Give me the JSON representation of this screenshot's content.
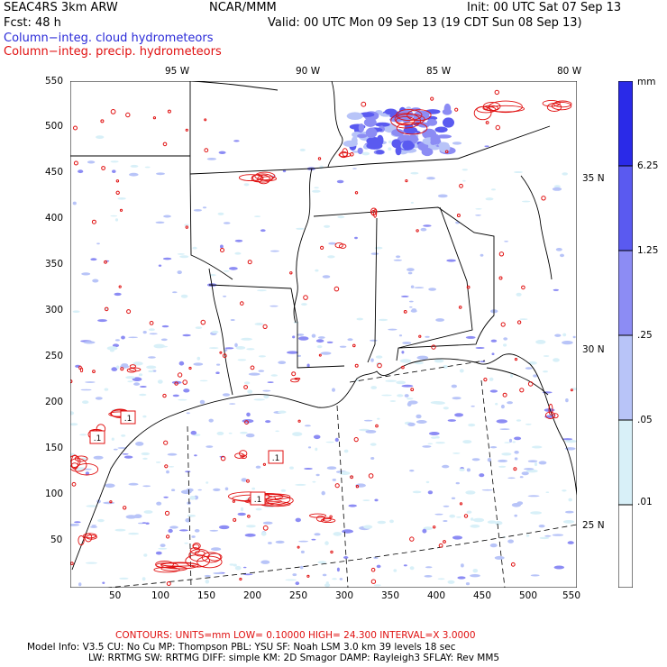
{
  "header": {
    "model": "SEAC4RS  3km ARW",
    "org": "NCAR/MMM",
    "init": "Init: 00 UTC Sat 07 Sep 13",
    "fcst": "Fcst:   48 h",
    "valid": "Valid: 00 UTC Mon 09 Sep 13 (19 CDT Sun 08 Sep 13)",
    "field1": "Column−integ. cloud hydrometeors",
    "field2": "Column−integ. precip. hydrometeors"
  },
  "map": {
    "lon_labels": [
      "95 W",
      "90 W",
      "85 W",
      "80 W"
    ],
    "lat_labels": [
      "35 N",
      "30 N",
      "25 N"
    ],
    "x_ticks": [
      "50",
      "100",
      "150",
      "200",
      "250",
      "300",
      "350",
      "400",
      "450",
      "500",
      "550"
    ],
    "y_ticks": [
      "550",
      "500",
      "450",
      "400",
      "350",
      "300",
      "250",
      "200",
      "150",
      "100",
      "50"
    ],
    "contour_labels": [
      ".1",
      ".1",
      ".1",
      ".1"
    ]
  },
  "colorbar": {
    "unit": "mm",
    "levels": [
      "6.25",
      "1.25",
      ".25",
      ".05",
      ".01"
    ],
    "colors": [
      "#2a2ae8",
      "#5a5af0",
      "#8c8cf4",
      "#b8c4f8",
      "#d8f0f8",
      "#ffffff"
    ]
  },
  "footer": {
    "contours": "CONTOURS:  UNITS=mm  LOW= 0.10000      HIGH=  24.300      INTERVAL=X  3.0000",
    "line1": "Model Info: V3.5       CU: No Cu       MP: Thompson     PBL: YSU       SF: Noah LSM      3.0 km   39 levels   18 sec",
    "line2": "LW: RRTMG    SW: RRTMG   DIFF: simple KM: 2D Smagor DAMP: Rayleigh3   SFLAY: Rev MM5"
  },
  "colors": {
    "cloud": "#2a2ad8",
    "precip": "#e01010"
  }
}
